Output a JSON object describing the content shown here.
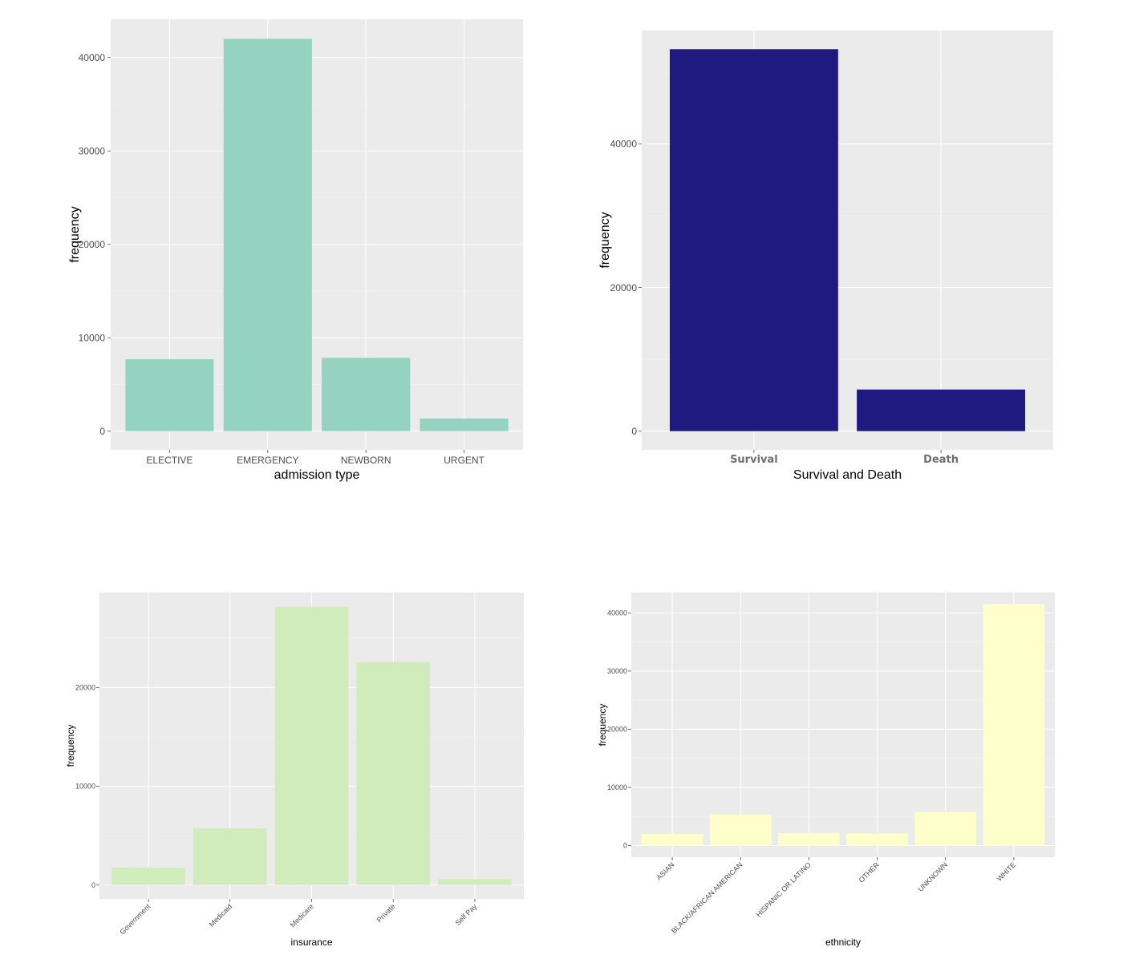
{
  "chart_data": [
    {
      "type": "bar",
      "categories": [
        "ELECTIVE",
        "EMERGENCY",
        "NEWBORN",
        "URGENT"
      ],
      "values": [
        7700,
        42000,
        7850,
        1350
      ],
      "xlabel": "admission type",
      "ylabel": "frequency",
      "ylim": [
        -2000,
        44100
      ],
      "yticks": [
        0,
        10000,
        20000,
        30000,
        40000
      ],
      "ytick_labels": [
        "0",
        "10000",
        "20000",
        "30000",
        "40000"
      ],
      "bar_color": "#95d3c1",
      "grid": true
    },
    {
      "type": "bar",
      "categories": [
        "Survival",
        "Death"
      ],
      "values": [
        53200,
        5800
      ],
      "xlabel": "Survival and Death",
      "ylabel": "frequency",
      "ylim": [
        -2600,
        55800
      ],
      "yticks": [
        0,
        20000,
        40000
      ],
      "ytick_labels": [
        "0",
        "20000",
        "40000"
      ],
      "bar_color": "#1f1a80",
      "grid": true
    },
    {
      "type": "bar",
      "categories": [
        "Government",
        "Medicaid",
        "Medicare",
        "Private",
        "Self Pay"
      ],
      "values": [
        1750,
        5750,
        28150,
        22550,
        600
      ],
      "xlabel": "insurance",
      "ylabel": "frequency",
      "ylim": [
        -1400,
        29600
      ],
      "yticks": [
        0,
        10000,
        20000
      ],
      "ytick_labels": [
        "0",
        "10000",
        "20000"
      ],
      "bar_color": "#d0ecbb",
      "grid": true
    },
    {
      "type": "bar",
      "categories": [
        "ASIAN",
        "BLACK/AFRICAN AMERICAN",
        "HISPANIC OR LATINO",
        "OTHER",
        "UNKNOWN",
        "WHITE"
      ],
      "values": [
        2000,
        5350,
        2100,
        2050,
        5800,
        41500
      ],
      "xlabel": "ethnicity",
      "ylabel": "frequency",
      "ylim": [
        -2000,
        43500
      ],
      "yticks": [
        0,
        10000,
        20000,
        30000,
        40000
      ],
      "ytick_labels": [
        "0",
        "10000",
        "20000",
        "30000",
        "40000"
      ],
      "bar_color": "#ffffcc",
      "grid": true
    }
  ]
}
